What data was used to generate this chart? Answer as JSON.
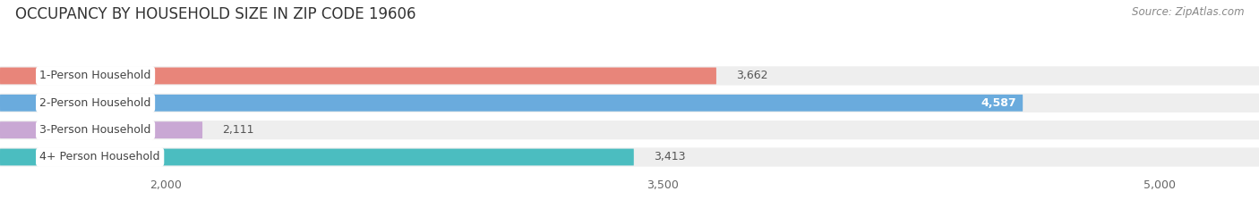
{
  "title": "OCCUPANCY BY HOUSEHOLD SIZE IN ZIP CODE 19606",
  "source": "Source: ZipAtlas.com",
  "categories": [
    "1-Person Household",
    "2-Person Household",
    "3-Person Household",
    "4+ Person Household"
  ],
  "values": [
    3662,
    4587,
    2111,
    3413
  ],
  "bar_colors": [
    "#e8857a",
    "#6aabdd",
    "#c9a8d4",
    "#4bbdc0"
  ],
  "xlim_data": [
    0,
    5000
  ],
  "xlim_display": [
    1500,
    5300
  ],
  "xticks": [
    2000,
    3500,
    5000
  ],
  "label_colors": [
    "#666666",
    "#ffffff",
    "#666666",
    "#666666"
  ],
  "bg_color": "#ffffff",
  "bar_row_bg": "#eeeeee",
  "title_fontsize": 12,
  "source_fontsize": 8.5,
  "tick_fontsize": 9,
  "bar_label_fontsize": 9,
  "category_fontsize": 9
}
